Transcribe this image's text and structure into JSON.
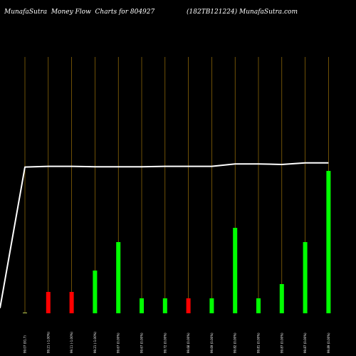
{
  "chart_data": {
    "type": "bar",
    "title_left": "MunafaSutra  Money Flow  Charts for 804927",
    "title_right": "(182TB121224) MunafaSutra.com",
    "categories": [
      "99.07 (91.7)",
      "99.21 (-1.00%)",
      "99.11 (-1.00%)",
      "99.21 (-1.00%)",
      "99.67 (0.00%)",
      "99.67 (0.00%)",
      "99.72 (0.00%)",
      "99.68 (0.00%)",
      "99.69 (0.00%)",
      "99.82 (0.00%)",
      "99.81 (0.00%)",
      "99.87 (0.00%)",
      "99.87 (0.00%)",
      "99.89 (0.00%)"
    ],
    "volume": [
      1,
      30,
      30,
      60,
      100,
      21,
      21,
      21,
      21,
      120,
      21,
      41,
      100,
      200
    ],
    "bar_colors": [
      "#b8cc55",
      "#ff0000",
      "#ff0000",
      "#00ff00",
      "#00ff00",
      "#00ff00",
      "#00ff00",
      "#ff0000",
      "#00ff00",
      "#00ff00",
      "#00ff00",
      "#00ff00",
      "#00ff00",
      "#00ff00"
    ],
    "price_line": [
      99.07,
      99.21,
      99.21,
      99.11,
      99.11,
      99.11,
      99.2,
      99.21,
      99.21,
      99.67,
      99.67,
      99.56,
      99.87,
      99.87
    ],
    "price_line_start": 72.0,
    "ylim_volume": [
      0,
      200
    ],
    "ylim_price": [
      71.0,
      105.3
    ],
    "grid": "vertical",
    "colors": {
      "background": "#000000",
      "text": "#ffffff",
      "grid": "#b8860b",
      "line": "#ffffff",
      "up": "#00ff00",
      "down": "#ff0000"
    }
  }
}
